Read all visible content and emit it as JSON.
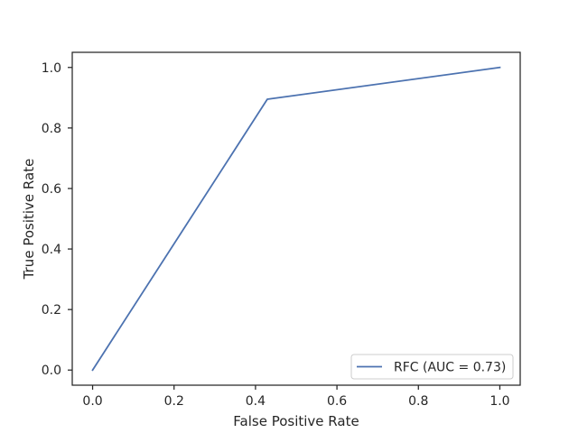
{
  "chart_data": {
    "type": "line",
    "title": "",
    "xlabel": "False Positive Rate",
    "ylabel": "True Positive Rate",
    "xlim": [
      -0.05,
      1.05
    ],
    "ylim": [
      -0.05,
      1.05
    ],
    "xticks": [
      "0.0",
      "0.2",
      "0.4",
      "0.6",
      "0.8",
      "1.0"
    ],
    "yticks": [
      "0.0",
      "0.2",
      "0.4",
      "0.6",
      "0.8",
      "1.0"
    ],
    "grid": false,
    "legend_position": "lower-right",
    "series": [
      {
        "name": "RFC (AUC = 0.73)",
        "color": "#4c72b0",
        "points": [
          {
            "x": 0.0,
            "y": 0.0
          },
          {
            "x": 0.429,
            "y": 0.895
          },
          {
            "x": 1.0,
            "y": 1.0
          }
        ]
      }
    ]
  }
}
